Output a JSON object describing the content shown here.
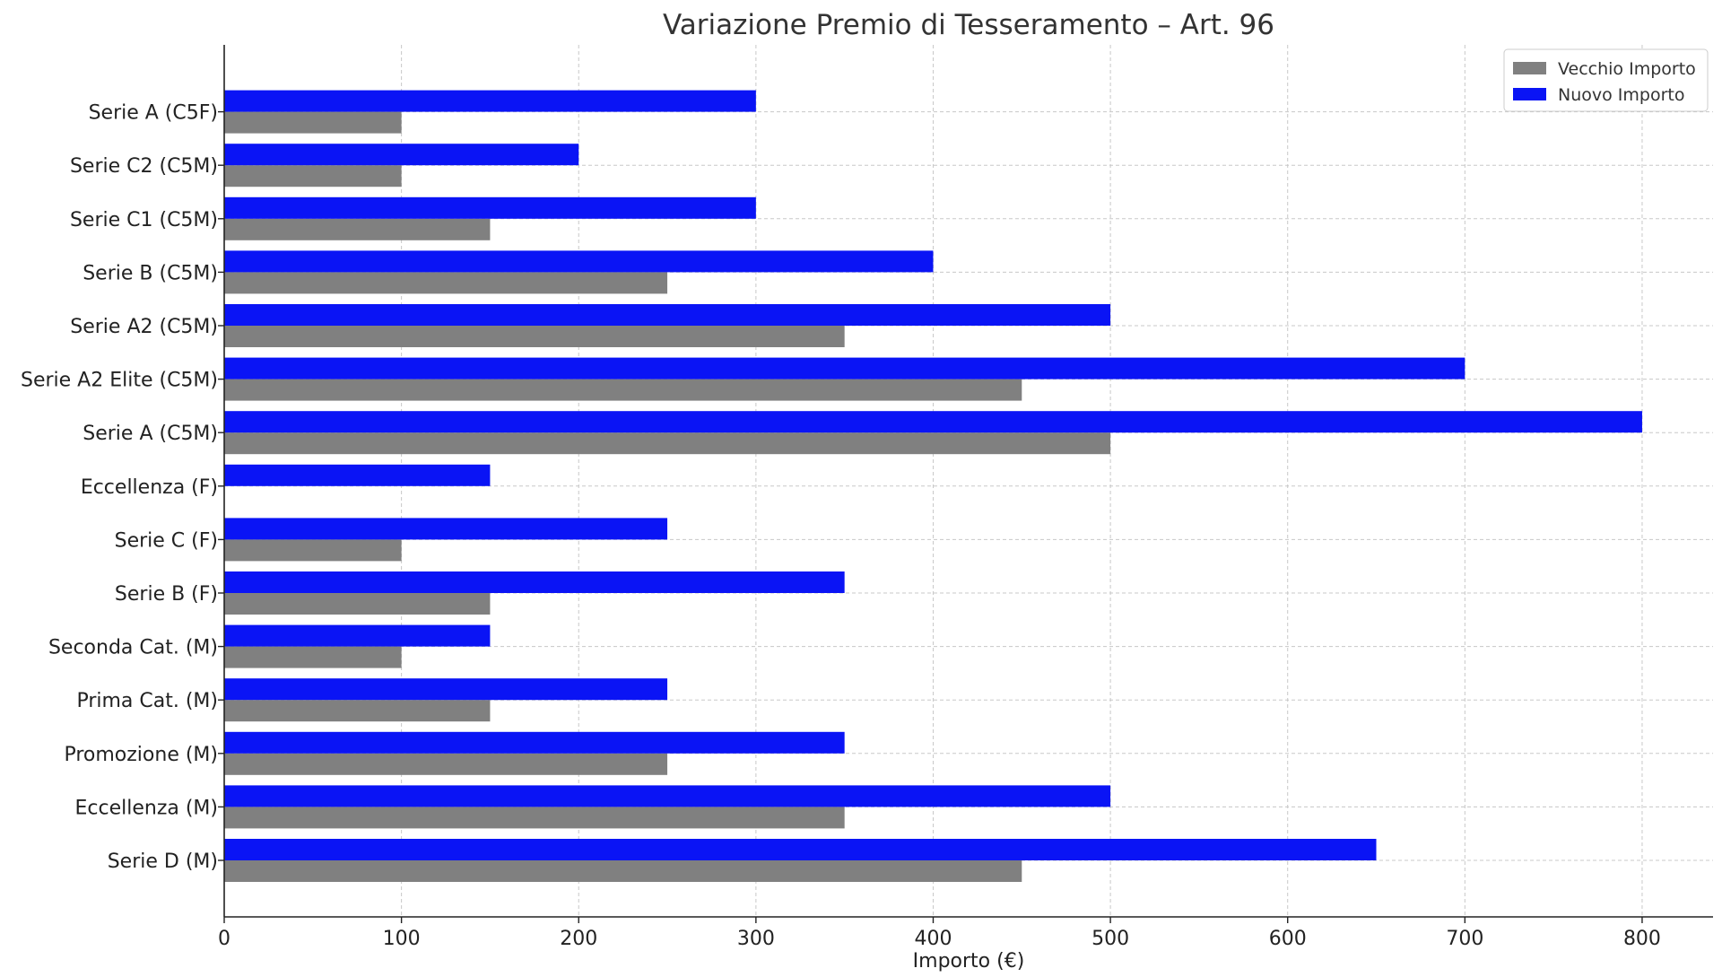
{
  "chart_data": {
    "type": "bar",
    "orientation": "horizontal",
    "title": "Variazione Premio di Tesseramento – Art. 96",
    "xlabel": "Importo (€)",
    "ylabel": "",
    "xlim": [
      0,
      840
    ],
    "xticks": [
      0,
      100,
      200,
      300,
      400,
      500,
      600,
      700,
      800
    ],
    "grid": true,
    "legend_position": "top-right",
    "categories": [
      "Serie D (M)",
      "Eccellenza (M)",
      "Promozione (M)",
      "Prima Cat. (M)",
      "Seconda Cat. (M)",
      "Serie B (F)",
      "Serie C (F)",
      "Eccellenza (F)",
      "Serie A (C5M)",
      "Serie A2 Elite (C5M)",
      "Serie A2 (C5M)",
      "Serie B (C5M)",
      "Serie C1 (C5M)",
      "Serie C2 (C5M)",
      "Serie A (C5F)"
    ],
    "series": [
      {
        "name": "Vecchio Importo",
        "color": "#808080",
        "values": [
          450,
          350,
          250,
          150,
          100,
          150,
          100,
          0,
          500,
          450,
          350,
          250,
          150,
          100,
          100
        ]
      },
      {
        "name": "Nuovo Importo",
        "color": "#0a14f5",
        "values": [
          650,
          500,
          350,
          250,
          150,
          350,
          250,
          150,
          800,
          700,
          500,
          400,
          300,
          200,
          300
        ]
      }
    ]
  }
}
